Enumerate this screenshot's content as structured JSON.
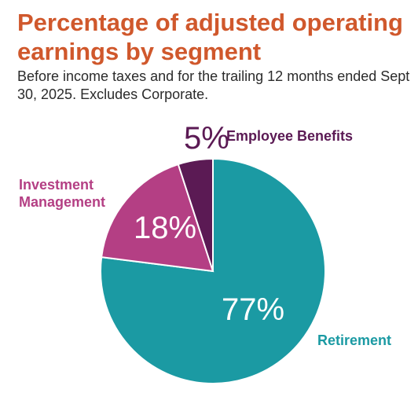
{
  "title": "Percentage of adjusted operating earnings by segment",
  "subtitle": "Before income taxes and for the trailing 12 months ended Sept 30, 2025. Excludes Corporate.",
  "chart_data": {
    "type": "pie",
    "title": "Percentage of adjusted operating earnings by segment",
    "subtitle": "Before income taxes and for the trailing 12 months ended Sept 30, 2025. Excludes Corporate.",
    "slices": [
      {
        "label": "Retirement",
        "value": 77,
        "value_label": "77%",
        "color": "#1b9aa3"
      },
      {
        "label": "Investment Management",
        "value": 18,
        "value_label": "18%",
        "color": "#b43f84"
      },
      {
        "label": "Employee Benefits",
        "value": 5,
        "value_label": "5%",
        "color": "#5b1a54"
      }
    ],
    "start_angle": "12 o'clock",
    "direction": "clockwise"
  }
}
